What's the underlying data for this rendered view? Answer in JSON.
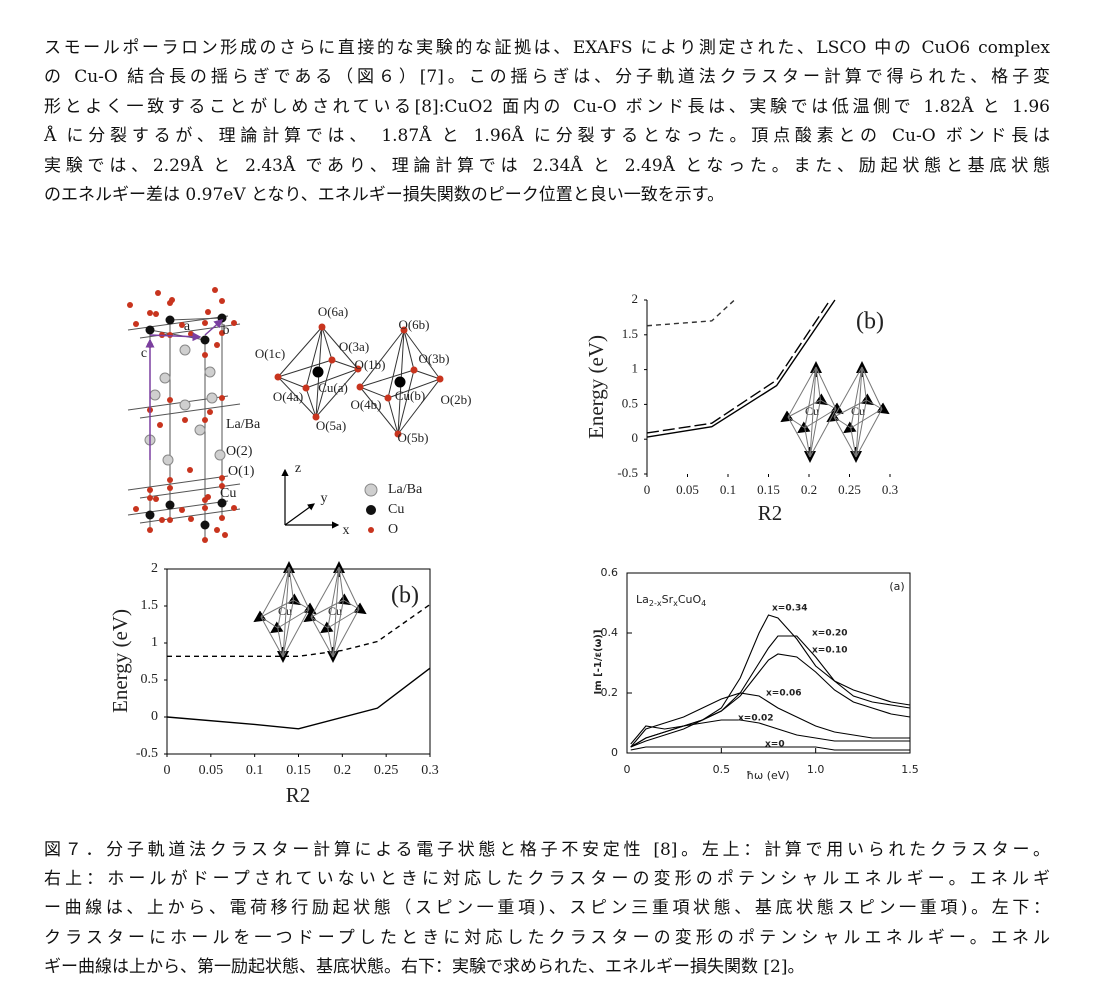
{
  "paragraph": {
    "lines": [
      "スモールポーラロン形成のさらに直接的な実験的な証拠は、EXAFS により測定された、LSCO 中の CuO6 complex",
      "の Cu-O 結合長の揺らぎである（図６）[7]。この揺らぎは、分子軌道法クラスター計算で得られた、格子変",
      "形とよく一致することがしめされている[8]:CuO2 面内の Cu-O ボンド長は、実験では低温側で 1.82Å と 1.96",
      "Å に分裂するが、理論計算では、 1.87Å と 1.96Å に分裂するとなった。頂点酸素との Cu-O ボンド長は",
      "実験では、2.29Å と 2.43Å であり、理論計算では 2.34Å と 2.49Å となった。また、励起状態と基底状態",
      "のエネルギー差は 0.97eV となり、エネルギー損失関数のピーク位置と良い一致を示す。"
    ]
  },
  "figure": {
    "structure": {
      "axis_labels": [
        "a",
        "b",
        "c"
      ],
      "site_labels": [
        "La/Ba",
        "O(2)",
        "O(1)",
        "Cu"
      ],
      "cluster_labels": [
        "O(6a)",
        "O(6b)",
        "O(1c)",
        "O(3a)",
        "O(1b)",
        "O(3b)",
        "Cu(a)",
        "Cu(b)",
        "O(4a)",
        "O(4b)",
        "O(2b)",
        "O(5a)",
        "O(5b)"
      ],
      "coordinate_labels": [
        "z",
        "y",
        "x"
      ],
      "legend": [
        "La/Ba",
        "Cu",
        "O"
      ]
    },
    "panels": [
      {
        "type": "line",
        "panel_label": "(b)",
        "xlabel": "R2",
        "ylabel": "Energy (eV)",
        "xlim": [
          0,
          0.3
        ],
        "ylim": [
          -0.5,
          2
        ],
        "xticks": [
          0,
          0.05,
          0.1,
          0.15,
          0.2,
          0.25,
          0.3
        ],
        "yticks": [
          -0.5,
          0,
          0.5,
          1,
          1.5,
          2
        ],
        "inset_labels": [
          "Cu",
          "Cu"
        ],
        "series": [
          {
            "color": "#333333",
            "style": "dashed",
            "x": [
              0,
              0.08,
              0.108
            ],
            "values": [
              1.63,
              1.7,
              2
            ]
          },
          {
            "color": "#000000",
            "style": "longdash",
            "x": [
              0,
              0.08,
              0.16,
              0.226
            ],
            "values": [
              0.09,
              0.23,
              0.85,
              2
            ]
          },
          {
            "color": "#000000",
            "style": "solid",
            "x": [
              0,
              0.08,
              0.16,
              0.232
            ],
            "values": [
              0.03,
              0.18,
              0.77,
              2
            ]
          }
        ]
      },
      {
        "type": "line",
        "panel_label": "(b)",
        "xlabel": "R2",
        "ylabel": "Energy (eV)",
        "xlim": [
          0,
          0.3
        ],
        "ylim": [
          -0.5,
          2
        ],
        "xticks": [
          0,
          0.05,
          0.1,
          0.15,
          0.2,
          0.25,
          0.3
        ],
        "yticks": [
          -0.5,
          0,
          0.5,
          1,
          1.5,
          2
        ],
        "inset_labels": [
          "Cu",
          "Cu"
        ],
        "series": [
          {
            "color": "#000000",
            "style": "dashed",
            "x": [
              0,
              0.1,
              0.15,
              0.2,
              0.24,
              0.3
            ],
            "values": [
              0.82,
              0.82,
              0.82,
              0.9,
              1.02,
              1.52
            ]
          },
          {
            "color": "#000000",
            "style": "solid",
            "x": [
              0,
              0.1,
              0.15,
              0.24,
              0.3
            ],
            "values": [
              0,
              -0.1,
              -0.16,
              0.12,
              0.66
            ]
          }
        ]
      },
      {
        "type": "line",
        "panel_label": "(a)",
        "xlabel": "ħω (eV)",
        "ylabel": "Im [-1/ε(ω)]",
        "title_parts": [
          "La",
          "2-x",
          "Sr",
          "x",
          "CuO",
          "4"
        ],
        "xlim": [
          0,
          1.5
        ],
        "ylim": [
          0,
          0.6
        ],
        "xticks": [
          0,
          0.5,
          {
            "value": 1,
            "label": "1.0"
          },
          1.5
        ],
        "yticks": [
          0,
          0.2,
          0.4,
          0.6
        ],
        "x": [
          0.02,
          0.1,
          0.2,
          0.3,
          0.4,
          0.5,
          0.6,
          0.7,
          0.75,
          0.8,
          0.9,
          1.0,
          1.1,
          1.2,
          1.3,
          1.4,
          1.5
        ],
        "series": [
          {
            "name": "x=0.34",
            "color": "#000000",
            "values": [
              0.02,
              0.04,
              0.06,
              0.08,
              0.11,
              0.15,
              0.25,
              0.4,
              0.46,
              0.45,
              0.38,
              0.29,
              0.24,
              0.21,
              0.19,
              0.17,
              0.16
            ]
          },
          {
            "name": "x=0.20",
            "color": "#000000",
            "values": [
              0.02,
              0.05,
              0.07,
              0.09,
              0.11,
              0.14,
              0.2,
              0.3,
              0.35,
              0.39,
              0.39,
              0.32,
              0.24,
              0.19,
              0.17,
              0.16,
              0.15
            ]
          },
          {
            "name": "x=0.10",
            "color": "#000000",
            "values": [
              0.02,
              0.05,
              0.07,
              0.09,
              0.11,
              0.14,
              0.19,
              0.27,
              0.31,
              0.33,
              0.32,
              0.27,
              0.21,
              0.17,
              0.15,
              0.13,
              0.12
            ]
          },
          {
            "name": "x=0.06",
            "color": "#000000",
            "values": [
              0.02,
              0.08,
              0.1,
              0.12,
              0.15,
              0.18,
              0.2,
              0.19,
              0.17,
              0.15,
              0.12,
              0.09,
              0.07,
              0.06,
              0.05,
              0.05,
              0.05
            ]
          },
          {
            "name": "x=0.02",
            "color": "#000000",
            "values": [
              0.03,
              0.09,
              0.08,
              0.09,
              0.1,
              0.11,
              0.11,
              0.1,
              0.09,
              0.08,
              0.06,
              0.05,
              0.04,
              0.04,
              0.04,
              0.04,
              0.04
            ]
          },
          {
            "name": "x=0",
            "color": "#000000",
            "values": [
              0.01,
              0.02,
              0.02,
              0.02,
              0.02,
              0.02,
              0.02,
              0.02,
              0.02,
              0.02,
              0.02,
              0.02,
              0.01,
              0.01,
              0.01,
              0.01,
              0.01
            ]
          }
        ]
      }
    ]
  },
  "caption": {
    "lines": [
      "図７．分子軌道法クラスター計算による電子状態と格子不安定性 [8]。左上：計算で用いられたクラスター。",
      "右上：ホールがドープされていないときに対応したクラスターの変形のポテンシャルエネルギー。エネルギ",
      "ー曲線は、上から、電荷移行励起状態（スピン一重項)、スピン三重項状態、基底状態スピン一重項)。左下：",
      "クラスターにホールを一つドープしたときに対応したクラスターの変形のポテンシャルエネルギー。エネル",
      "ギー曲線は上から、第一励起状態、基底状態。右下：実験で求められた、エネルギー損失関数 [2]。"
    ]
  }
}
